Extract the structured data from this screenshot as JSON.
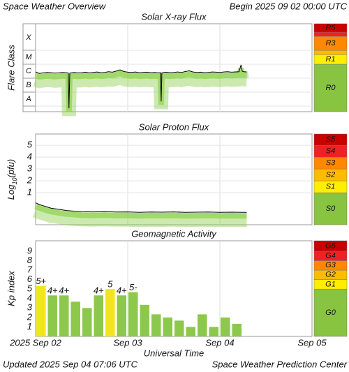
{
  "header": {
    "title": "Space Weather Overview",
    "begin": "Begin 2025 09 02 00:00 UTC"
  },
  "chart_data": [
    {
      "type": "line",
      "title": "Solar X-ray Flux",
      "ylabel": "Flare Class",
      "log": true,
      "grid": true,
      "xlim": [
        0,
        72
      ],
      "xgrid": [
        24,
        48
      ],
      "ylim": [
        4e-09,
        0.008
      ],
      "yticks": [
        {
          "value": 3.16e-08,
          "label": "A"
        },
        {
          "value": 3.16e-07,
          "label": "B"
        },
        {
          "value": 3.16e-06,
          "label": "C"
        },
        {
          "value": 3.16e-05,
          "label": "M"
        },
        {
          "value": 0.00079,
          "label": "X"
        }
      ],
      "x": [
        0,
        1,
        2,
        3,
        4,
        5,
        6,
        7,
        8,
        8.5,
        8.7,
        8.9,
        9.5,
        10,
        11,
        12,
        13,
        14,
        15,
        16,
        17,
        18,
        19,
        20,
        21,
        22,
        23,
        24,
        25,
        26,
        27,
        28,
        29,
        30,
        31,
        32,
        32.5,
        32.7,
        32.9,
        33.5,
        34,
        35,
        36,
        37,
        38,
        39,
        40,
        41,
        42,
        43,
        44,
        45,
        46,
        47,
        48,
        49,
        50,
        51,
        52,
        53,
        53.5,
        53.8,
        54.2,
        55
      ],
      "series": [
        {
          "color": "#000000",
          "glow_color": "#8fd14f",
          "values": [
            2.8e-06,
            2.2e-06,
            2.4e-06,
            2.6e-06,
            2.5e-06,
            2.3e-06,
            2.4e-06,
            2.6e-06,
            2.5e-06,
            2.4e-06,
            7e-09,
            2.3e-06,
            2.5e-06,
            2.6e-06,
            2.4e-06,
            2.5e-06,
            2.7e-06,
            2.4e-06,
            2.6e-06,
            2.8e-06,
            2.5e-06,
            2.6e-06,
            2.9e-06,
            2.7e-06,
            3.2e-06,
            4e-06,
            3e-06,
            2.7e-06,
            2.6e-06,
            2.8e-06,
            2.5e-06,
            2.6e-06,
            2.7e-06,
            2.5e-06,
            2.6e-06,
            2.4e-06,
            2.5e-06,
            2.2e-08,
            2.4e-06,
            2.6e-06,
            2.7e-06,
            2.5e-06,
            2.6e-06,
            2.8e-06,
            2.6e-06,
            3e-06,
            3.4e-06,
            2.8e-06,
            2.6e-06,
            2.7e-06,
            2.5e-06,
            2.6e-06,
            2.8e-06,
            2.7e-06,
            2.6e-06,
            2.8e-06,
            2.9e-06,
            2.7e-06,
            2.8e-06,
            2.9e-06,
            9e-06,
            3.2e-06,
            2.9e-06,
            2.8e-06
          ]
        }
      ],
      "scale": [
        {
          "label": "R0",
          "color": "#88c440"
        },
        {
          "label": "R1",
          "color": "#ffee00",
          "from": 1e-05
        },
        {
          "color": "#ffbb00",
          "from": 5e-05
        },
        {
          "label": "R3",
          "color": "#ff8800",
          "from": 0.0001
        },
        {
          "color": "#ee2222",
          "from": 0.001
        },
        {
          "label": "R5",
          "color": "#c80000",
          "from": 0.002
        }
      ]
    },
    {
      "type": "line",
      "title": "Solar Proton Flux",
      "ylabel_parts": [
        "Log",
        "10",
        "(pfu)"
      ],
      "grid": true,
      "xlim": [
        0,
        72
      ],
      "xgrid": [
        24,
        48
      ],
      "ylim": [
        -1.7,
        5.95
      ],
      "yticks": [
        1,
        2,
        3,
        4,
        5
      ],
      "x": [
        0,
        1,
        2,
        3,
        4,
        6,
        8,
        10,
        12,
        15,
        18,
        21,
        24,
        27,
        30,
        33,
        36,
        39,
        42,
        45,
        48,
        51,
        54,
        55
      ],
      "series": [
        {
          "color": "#000000",
          "glow_color": "#8fd14f",
          "values": [
            0.15,
            0.0,
            -0.1,
            -0.2,
            -0.3,
            -0.4,
            -0.5,
            -0.55,
            -0.6,
            -0.62,
            -0.6,
            -0.63,
            -0.62,
            -0.65,
            -0.63,
            -0.64,
            -0.62,
            -0.66,
            -0.64,
            -0.63,
            -0.65,
            -0.64,
            -0.66,
            -0.65
          ]
        }
      ],
      "scale": [
        {
          "label": "S0",
          "color": "#88c440"
        },
        {
          "label": "S1",
          "color": "#ffee00",
          "from": 1
        },
        {
          "label": "S2",
          "color": "#ffbb00",
          "from": 2
        },
        {
          "label": "S3",
          "color": "#ff8800",
          "from": 3
        },
        {
          "label": "S4",
          "color": "#ee2222",
          "from": 4
        },
        {
          "label": "S5",
          "color": "#c80000",
          "from": 5
        }
      ]
    },
    {
      "type": "bar",
      "title": "Geomagnetic Activity",
      "ylabel": "Kp index",
      "grid": false,
      "xlim": [
        0,
        72
      ],
      "ylim": [
        0,
        10.1
      ],
      "yticks": [
        1,
        2,
        3,
        4,
        5,
        6,
        7,
        8,
        9
      ],
      "xticks": [
        {
          "value": 0,
          "label": "2025 Sep 02"
        },
        {
          "value": 24,
          "label": "Sep 03"
        },
        {
          "value": 48,
          "label": "Sep 04"
        },
        {
          "value": 72,
          "label": "Sep 05"
        }
      ],
      "xlabel": "Universal Time",
      "x": [
        0,
        3,
        6,
        9,
        12,
        15,
        18,
        21,
        24,
        27,
        30,
        33,
        36,
        39,
        42,
        45,
        48,
        51
      ],
      "values": [
        5.33,
        4.33,
        4.33,
        3.67,
        3,
        4.33,
        5,
        4.33,
        4.67,
        3.33,
        2.33,
        2,
        1.67,
        1,
        2.33,
        1,
        2,
        1.33
      ],
      "value_labels": [
        "5+",
        "4+",
        "4+",
        null,
        null,
        "4+",
        "5",
        "4+",
        "5-",
        null,
        null,
        null,
        null,
        null,
        null,
        null,
        null,
        null
      ],
      "colors": [
        "#f2e51e",
        "#8cc84b",
        "#8cc84b",
        "#8cc84b",
        "#8cc84b",
        "#8cc84b",
        "#f2e51e",
        "#8cc84b",
        "#8cc84b",
        "#8cc84b",
        "#8cc84b",
        "#8cc84b",
        "#8cc84b",
        "#8cc84b",
        "#8cc84b",
        "#8cc84b",
        "#8cc84b",
        "#8cc84b"
      ],
      "scale": [
        {
          "label": "G0",
          "color": "#88c440"
        },
        {
          "label": "G1",
          "color": "#ffee00",
          "from": 5
        },
        {
          "label": "G2",
          "color": "#ffbb00",
          "from": 6
        },
        {
          "label": "G3",
          "color": "#ff8800",
          "from": 7
        },
        {
          "label": "G4",
          "color": "#ee2222",
          "from": 8
        },
        {
          "label": "G5",
          "color": "#c80000",
          "from": 9
        }
      ]
    }
  ],
  "footer": {
    "updated": "Updated 2025 Sep 04 07:06 UTC",
    "credit": "Space Weather Prediction Center"
  }
}
